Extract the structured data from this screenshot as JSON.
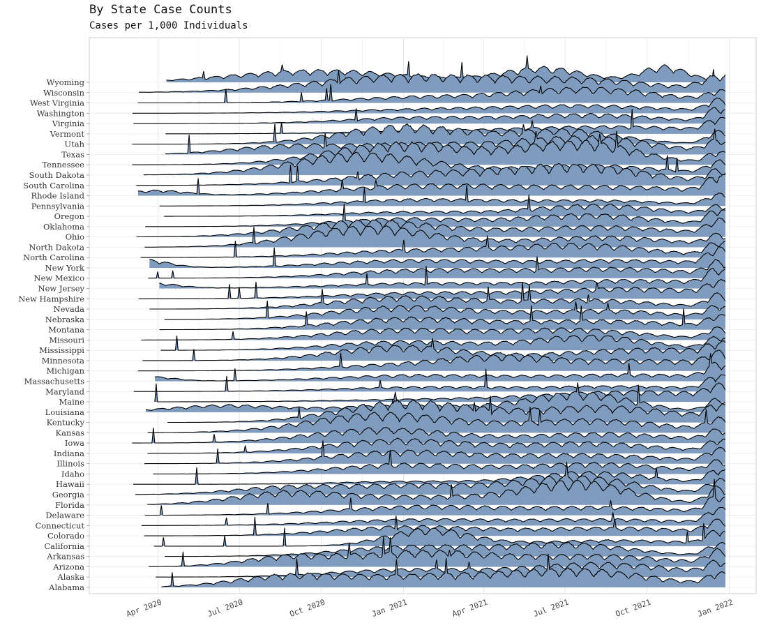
{
  "chart_data": {
    "type": "area",
    "title": "By State Case Counts",
    "subtitle": "Cases per 1,000 Individuals",
    "xlabel": "",
    "ylabel": "",
    "x_ticks": [
      "Apr 2020",
      "Jul 2020",
      "Oct 2020",
      "Jan 2021",
      "Apr 2021",
      "Jul 2021",
      "Oct 2021",
      "Jan 2022"
    ],
    "xlim": [
      "2020-01-15",
      "2022-01-31"
    ],
    "grid": true,
    "legend": "none",
    "fill_color": "#7f9cbf",
    "line_color": "#000000",
    "categories": [
      "Wyoming",
      "Wisconsin",
      "West Virginia",
      "Washington",
      "Virginia",
      "Vermont",
      "Utah",
      "Texas",
      "Tennessee",
      "South Dakota",
      "South Carolina",
      "Rhode Island",
      "Pennsylvania",
      "Oregon",
      "Oklahoma",
      "Ohio",
      "North Dakota",
      "North Carolina",
      "New York",
      "New Mexico",
      "New Jersey",
      "New Hampshire",
      "Nevada",
      "Nebraska",
      "Montana",
      "Missouri",
      "Mississippi",
      "Minnesota",
      "Michigan",
      "Massachusetts",
      "Maryland",
      "Maine",
      "Louisiana",
      "Kentucky",
      "Kansas",
      "Iowa",
      "Indiana",
      "Illinois",
      "Idaho",
      "Hawaii",
      "Georgia",
      "Florida",
      "Delaware",
      "Connecticut",
      "Colorado",
      "California",
      "Arkansas",
      "Arizona",
      "Alaska",
      "Alabama"
    ],
    "series": [
      {
        "name": "Wyoming",
        "waves": [
          [
            0.7,
            0.07,
            1.9
          ],
          [
            0.33,
            0.14,
            1.6
          ],
          [
            0.9,
            0.04,
            2.1
          ]
        ]
      },
      {
        "name": "Wisconsin",
        "waves": [
          [
            0.47,
            0.16,
            2.2
          ],
          [
            0.78,
            0.13,
            1.5
          ],
          [
            0.995,
            0.03,
            2.0
          ]
        ]
      },
      {
        "name": "West Virginia",
        "waves": [
          [
            0.5,
            0.13,
            0.8
          ],
          [
            0.78,
            0.12,
            1.9
          ],
          [
            0.99,
            0.02,
            1.3
          ]
        ]
      },
      {
        "name": "Washington",
        "waves": [
          [
            0.5,
            0.14,
            0.5
          ],
          [
            0.78,
            0.14,
            1.0
          ],
          [
            0.99,
            0.02,
            1.6
          ]
        ]
      },
      {
        "name": "Virginia",
        "waves": [
          [
            0.49,
            0.12,
            0.8
          ],
          [
            0.78,
            0.12,
            1.2
          ],
          [
            0.99,
            0.02,
            1.9
          ]
        ]
      },
      {
        "name": "Vermont",
        "waves": [
          [
            0.5,
            0.14,
            0.3
          ],
          [
            0.82,
            0.16,
            1.0
          ],
          [
            0.99,
            0.02,
            1.6
          ]
        ]
      },
      {
        "name": "Utah",
        "waves": [
          [
            0.47,
            0.11,
            2.4
          ],
          [
            0.74,
            0.09,
            1.8
          ],
          [
            0.99,
            0.02,
            1.7
          ]
        ]
      },
      {
        "name": "Texas",
        "waves": [
          [
            0.27,
            0.09,
            1.1
          ],
          [
            0.49,
            0.11,
            1.3
          ],
          [
            0.77,
            0.12,
            2.3
          ],
          [
            0.99,
            0.02,
            1.6
          ]
        ]
      },
      {
        "name": "Tennessee",
        "waves": [
          [
            0.46,
            0.12,
            2.8
          ],
          [
            0.76,
            0.1,
            2.9
          ],
          [
            0.99,
            0.02,
            1.6
          ]
        ]
      },
      {
        "name": "South Dakota",
        "waves": [
          [
            0.4,
            0.12,
            2.8
          ],
          [
            0.78,
            0.12,
            1.3
          ],
          [
            0.99,
            0.02,
            1.6
          ]
        ]
      },
      {
        "name": "South Carolina",
        "waves": [
          [
            0.5,
            0.14,
            1.6
          ],
          [
            0.77,
            0.12,
            2.4
          ],
          [
            0.99,
            0.02,
            1.7
          ]
        ]
      },
      {
        "name": "Rhode Island",
        "waves": [
          [
            0.06,
            0.05,
            0.7
          ],
          [
            0.49,
            0.14,
            1.3
          ],
          [
            0.82,
            0.16,
            1.2
          ],
          [
            0.99,
            0.02,
            2.2
          ]
        ]
      },
      {
        "name": "Pennsylvania",
        "waves": [
          [
            0.5,
            0.13,
            0.9
          ],
          [
            0.8,
            0.12,
            0.7
          ],
          [
            0.99,
            0.02,
            1.4
          ]
        ]
      },
      {
        "name": "Oregon",
        "waves": [
          [
            0.48,
            0.12,
            0.6
          ],
          [
            0.79,
            0.11,
            1.5
          ],
          [
            0.99,
            0.02,
            1.2
          ]
        ]
      },
      {
        "name": "Oklahoma",
        "waves": [
          [
            0.47,
            0.12,
            1.1
          ],
          [
            0.78,
            0.11,
            1.6
          ],
          [
            0.99,
            0.02,
            2.1
          ]
        ]
      },
      {
        "name": "Ohio",
        "waves": [
          [
            0.41,
            0.12,
            2.1
          ],
          [
            0.79,
            0.14,
            1.4
          ],
          [
            0.99,
            0.02,
            1.9
          ]
        ]
      },
      {
        "name": "North Dakota",
        "waves": [
          [
            0.4,
            0.11,
            2.4
          ],
          [
            0.5,
            0.12,
            0.4
          ],
          [
            0.8,
            0.12,
            1.4
          ],
          [
            0.99,
            0.02,
            1.4
          ]
        ]
      },
      {
        "name": "North Carolina",
        "waves": [
          [
            0.5,
            0.14,
            1.0
          ],
          [
            0.77,
            0.12,
            1.6
          ],
          [
            0.99,
            0.02,
            1.9
          ]
        ]
      },
      {
        "name": "New York",
        "waves": [
          [
            0.04,
            0.04,
            1.1
          ],
          [
            0.48,
            0.14,
            1.0
          ],
          [
            0.84,
            0.15,
            1.0
          ],
          [
            0.99,
            0.02,
            2.1
          ]
        ]
      },
      {
        "name": "New Mexico",
        "waves": [
          [
            0.5,
            0.13,
            1.1
          ],
          [
            0.82,
            0.14,
            1.3
          ],
          [
            0.99,
            0.02,
            1.7
          ]
        ]
      },
      {
        "name": "New Jersey",
        "waves": [
          [
            0.04,
            0.05,
            0.8
          ],
          [
            0.5,
            0.15,
            0.7
          ],
          [
            0.86,
            0.14,
            1.1
          ],
          [
            0.99,
            0.02,
            2.1
          ]
        ]
      },
      {
        "name": "New Hampshire",
        "waves": [
          [
            0.5,
            0.14,
            0.8
          ],
          [
            0.85,
            0.14,
            1.4
          ],
          [
            0.99,
            0.02,
            1.6
          ]
        ]
      },
      {
        "name": "Nevada",
        "waves": [
          [
            0.47,
            0.12,
            1.6
          ],
          [
            0.78,
            0.12,
            1.2
          ],
          [
            0.99,
            0.02,
            1.8
          ]
        ]
      },
      {
        "name": "Nebraska",
        "waves": [
          [
            0.47,
            0.12,
            1.7
          ],
          [
            0.8,
            0.12,
            1.2
          ],
          [
            0.99,
            0.02,
            1.6
          ]
        ]
      },
      {
        "name": "Montana",
        "waves": [
          [
            0.47,
            0.12,
            1.5
          ],
          [
            0.8,
            0.14,
            1.2
          ],
          [
            0.99,
            0.02,
            1.5
          ]
        ]
      },
      {
        "name": "Missouri",
        "waves": [
          [
            0.46,
            0.12,
            1.4
          ],
          [
            0.75,
            0.12,
            1.4
          ],
          [
            0.99,
            0.02,
            1.5
          ]
        ]
      },
      {
        "name": "Mississippi",
        "waves": [
          [
            0.47,
            0.12,
            1.2
          ],
          [
            0.78,
            0.1,
            1.9
          ],
          [
            0.99,
            0.02,
            1.7
          ]
        ]
      },
      {
        "name": "Minnesota",
        "waves": [
          [
            0.46,
            0.11,
            1.9
          ],
          [
            0.88,
            0.15,
            1.6
          ],
          [
            0.99,
            0.02,
            1.3
          ]
        ]
      },
      {
        "name": "Michigan",
        "waves": [
          [
            0.46,
            0.12,
            0.8
          ],
          [
            0.63,
            0.09,
            1.4
          ],
          [
            0.88,
            0.15,
            1.4
          ],
          [
            0.99,
            0.02,
            1.5
          ]
        ]
      },
      {
        "name": "Massachusetts",
        "waves": [
          [
            0.05,
            0.04,
            0.6
          ],
          [
            0.49,
            0.14,
            0.8
          ],
          [
            0.86,
            0.15,
            0.9
          ],
          [
            0.99,
            0.02,
            1.9
          ]
        ]
      },
      {
        "name": "Maryland",
        "waves": [
          [
            0.5,
            0.14,
            0.6
          ],
          [
            0.84,
            0.14,
            0.7
          ],
          [
            0.99,
            0.02,
            1.9
          ]
        ]
      },
      {
        "name": "Maine",
        "waves": [
          [
            0.5,
            0.15,
            0.3
          ],
          [
            0.86,
            0.16,
            1.4
          ],
          [
            0.99,
            0.02,
            1.3
          ]
        ]
      },
      {
        "name": "Louisiana",
        "waves": [
          [
            0.17,
            0.09,
            0.9
          ],
          [
            0.47,
            0.12,
            0.9
          ],
          [
            0.76,
            0.09,
            2.5
          ],
          [
            0.99,
            0.02,
            1.7
          ]
        ]
      },
      {
        "name": "Kentucky",
        "waves": [
          [
            0.47,
            0.11,
            2.7
          ],
          [
            0.8,
            0.13,
            2.1
          ],
          [
            0.99,
            0.02,
            1.8
          ]
        ]
      },
      {
        "name": "Kansas",
        "waves": [
          [
            0.43,
            0.12,
            2.5
          ],
          [
            0.78,
            0.13,
            1.7
          ],
          [
            0.99,
            0.02,
            1.5
          ]
        ]
      },
      {
        "name": "Iowa",
        "waves": [
          [
            0.43,
            0.12,
            1.9
          ],
          [
            0.8,
            0.13,
            1.3
          ],
          [
            0.99,
            0.02,
            1.4
          ]
        ]
      },
      {
        "name": "Indiana",
        "waves": [
          [
            0.46,
            0.12,
            1.8
          ],
          [
            0.78,
            0.12,
            1.4
          ],
          [
            0.99,
            0.02,
            1.6
          ]
        ]
      },
      {
        "name": "Illinois",
        "waves": [
          [
            0.46,
            0.12,
            1.6
          ],
          [
            0.78,
            0.14,
            1.2
          ],
          [
            0.99,
            0.02,
            1.7
          ]
        ]
      },
      {
        "name": "Idaho",
        "waves": [
          [
            0.47,
            0.12,
            1.3
          ],
          [
            0.79,
            0.12,
            1.4
          ],
          [
            0.99,
            0.02,
            1.5
          ]
        ]
      },
      {
        "name": "Hawaii",
        "waves": [
          [
            0.48,
            0.12,
            0.4
          ],
          [
            0.78,
            0.1,
            1.6
          ],
          [
            0.99,
            0.02,
            1.9
          ]
        ]
      },
      {
        "name": "Georgia",
        "waves": [
          [
            0.27,
            0.09,
            0.9
          ],
          [
            0.49,
            0.12,
            1.3
          ],
          [
            0.76,
            0.1,
            2.3
          ],
          [
            0.99,
            0.02,
            1.9
          ]
        ]
      },
      {
        "name": "Florida",
        "waves": [
          [
            0.27,
            0.09,
            1.5
          ],
          [
            0.5,
            0.14,
            1.1
          ],
          [
            0.76,
            0.09,
            2.9
          ],
          [
            0.99,
            0.02,
            2.3
          ]
        ]
      },
      {
        "name": "Delaware",
        "waves": [
          [
            0.5,
            0.14,
            1.2
          ],
          [
            0.82,
            0.13,
            1.0
          ],
          [
            0.99,
            0.02,
            2.3
          ]
        ]
      },
      {
        "name": "Connecticut",
        "waves": [
          [
            0.49,
            0.14,
            0.8
          ],
          [
            0.82,
            0.14,
            0.8
          ],
          [
            0.99,
            0.02,
            2.0
          ]
        ]
      },
      {
        "name": "Colorado",
        "waves": [
          [
            0.47,
            0.12,
            1.2
          ],
          [
            0.82,
            0.15,
            1.1
          ],
          [
            0.99,
            0.02,
            1.6
          ]
        ]
      },
      {
        "name": "California",
        "waves": [
          [
            0.51,
            0.07,
            2.2
          ],
          [
            0.82,
            0.14,
            0.8
          ],
          [
            0.99,
            0.02,
            1.8
          ]
        ]
      },
      {
        "name": "Arkansas",
        "waves": [
          [
            0.49,
            0.12,
            1.4
          ],
          [
            0.75,
            0.1,
            1.6
          ],
          [
            0.99,
            0.02,
            1.7
          ]
        ]
      },
      {
        "name": "Arizona",
        "waves": [
          [
            0.28,
            0.08,
            1.3
          ],
          [
            0.5,
            0.11,
            1.9
          ],
          [
            0.79,
            0.13,
            1.5
          ],
          [
            0.99,
            0.02,
            1.8
          ]
        ]
      },
      {
        "name": "Alaska",
        "waves": [
          [
            0.47,
            0.12,
            1.0
          ],
          [
            0.8,
            0.13,
            1.8
          ],
          [
            0.99,
            0.02,
            1.6
          ]
        ]
      },
      {
        "name": "Alabama",
        "waves": [
          [
            0.27,
            0.09,
            1.3
          ],
          [
            0.5,
            0.14,
            1.5
          ],
          [
            0.77,
            0.12,
            2.1
          ],
          [
            0.99,
            0.02,
            1.6
          ]
        ]
      }
    ]
  }
}
